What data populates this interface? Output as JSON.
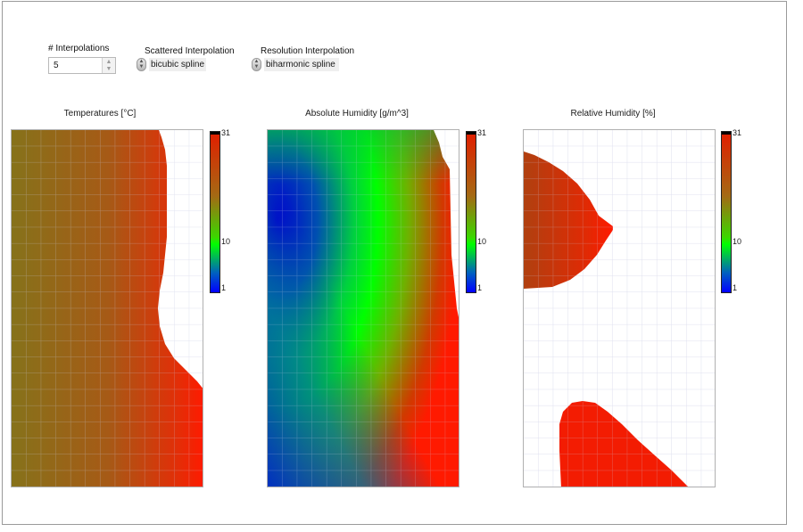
{
  "controls": {
    "interpolations": {
      "label": "# Interpolations",
      "value": "5"
    },
    "scattered": {
      "label": "Scattered Interpolation",
      "value": "bicubic spline"
    },
    "resolution": {
      "label": "Resolution Interpolation",
      "value": "biharmonic spline"
    }
  },
  "graphs": [
    {
      "title": "Temperatures [°C]",
      "scale_ticks": [
        "31",
        "10",
        "1"
      ]
    },
    {
      "title": "Absolute Humidity [g/m^3]",
      "scale_ticks": [
        "31",
        "10",
        "1"
      ]
    },
    {
      "title": "Relative Humidity [%]",
      "scale_ticks": [
        "31",
        "10",
        "1"
      ]
    }
  ],
  "colors": {
    "scale_top": "#d62000",
    "scale_mid": "#00ff00",
    "scale_bottom": "#0000ff",
    "grid": "#c9cbe4",
    "temperature_fill": "#a05a18",
    "humidity_red": "#ff1a00"
  }
}
